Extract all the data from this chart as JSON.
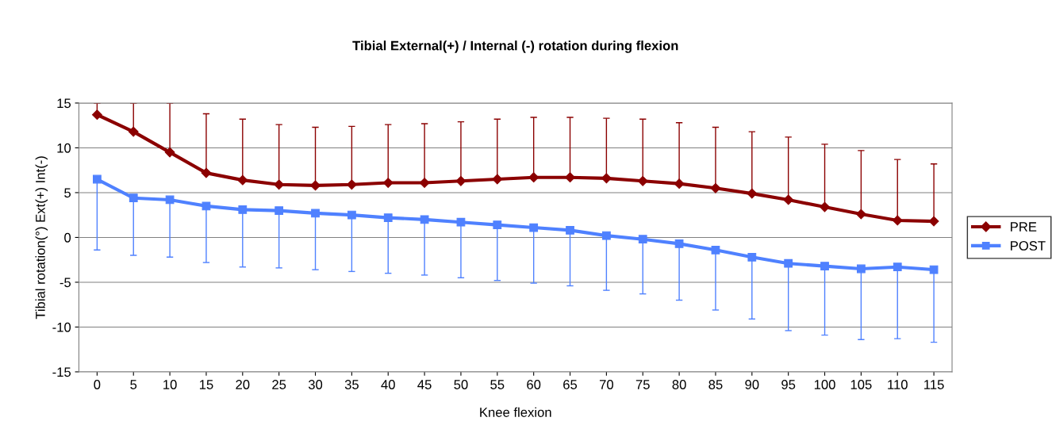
{
  "chart_data": {
    "type": "line",
    "title": "Tibial External(+) / Internal (-) rotation during flexion",
    "xlabel": "Knee flexion",
    "ylabel": "Tibial rotation(°) Ext(+) Int(-)",
    "categories": [
      "0",
      "5",
      "10",
      "15",
      "20",
      "25",
      "30",
      "35",
      "40",
      "45",
      "50",
      "55",
      "60",
      "65",
      "70",
      "75",
      "80",
      "85",
      "90",
      "95",
      "100",
      "105",
      "110",
      "115"
    ],
    "series": [
      {
        "name": "PRE",
        "color": "#8b0000",
        "marker": "diamond",
        "values": [
          13.7,
          11.8,
          9.5,
          7.2,
          6.4,
          5.9,
          5.8,
          5.9,
          6.1,
          6.1,
          6.3,
          6.5,
          6.7,
          6.7,
          6.6,
          6.3,
          6.0,
          5.5,
          4.9,
          4.2,
          3.4,
          2.6,
          1.9,
          1.8
        ],
        "errors": [
          [
            13.7,
            15
          ],
          [
            11.8,
            15
          ],
          [
            9.5,
            15
          ],
          [
            7.2,
            13.8
          ],
          [
            6.4,
            13.2
          ],
          [
            5.9,
            12.6
          ],
          [
            5.8,
            12.3
          ],
          [
            5.9,
            12.4
          ],
          [
            6.1,
            12.6
          ],
          [
            6.1,
            12.7
          ],
          [
            6.3,
            12.9
          ],
          [
            6.5,
            13.2
          ],
          [
            6.7,
            13.4
          ],
          [
            6.7,
            13.4
          ],
          [
            6.6,
            13.3
          ],
          [
            6.3,
            13.2
          ],
          [
            6.0,
            12.8
          ],
          [
            5.5,
            12.3
          ],
          [
            4.9,
            11.8
          ],
          [
            4.2,
            11.2
          ],
          [
            3.4,
            10.4
          ],
          [
            2.6,
            9.7
          ],
          [
            1.9,
            8.7
          ],
          [
            1.8,
            8.2
          ]
        ]
      },
      {
        "name": "POST",
        "color": "#4f81ff",
        "marker": "square",
        "values": [
          6.5,
          4.4,
          4.2,
          3.5,
          3.1,
          3.0,
          2.7,
          2.5,
          2.2,
          2.0,
          1.7,
          1.4,
          1.1,
          0.8,
          0.2,
          -0.2,
          -0.7,
          -1.4,
          -2.2,
          -2.9,
          -3.2,
          -3.5,
          -3.3,
          -3.6
        ],
        "errors": [
          [
            -1.4,
            6.5
          ],
          [
            -2.0,
            4.4
          ],
          [
            -2.2,
            4.2
          ],
          [
            -2.8,
            3.5
          ],
          [
            -3.3,
            3.1
          ],
          [
            -3.4,
            3.0
          ],
          [
            -3.6,
            2.7
          ],
          [
            -3.8,
            2.5
          ],
          [
            -4.0,
            2.2
          ],
          [
            -4.2,
            2.0
          ],
          [
            -4.5,
            1.7
          ],
          [
            -4.8,
            1.4
          ],
          [
            -5.1,
            1.1
          ],
          [
            -5.4,
            0.8
          ],
          [
            -5.9,
            0.2
          ],
          [
            -6.3,
            -0.2
          ],
          [
            -7.0,
            -0.7
          ],
          [
            -8.1,
            -1.4
          ],
          [
            -9.1,
            -2.2
          ],
          [
            -10.4,
            -2.9
          ],
          [
            -10.9,
            -3.2
          ],
          [
            -11.4,
            -3.5
          ],
          [
            -11.3,
            -3.3
          ],
          [
            -11.7,
            -3.6
          ]
        ]
      }
    ],
    "ylim": [
      -15,
      15
    ],
    "yticks": [
      -15,
      -10,
      -5,
      0,
      5,
      10,
      15
    ],
    "grid": "y",
    "legend": "right"
  }
}
